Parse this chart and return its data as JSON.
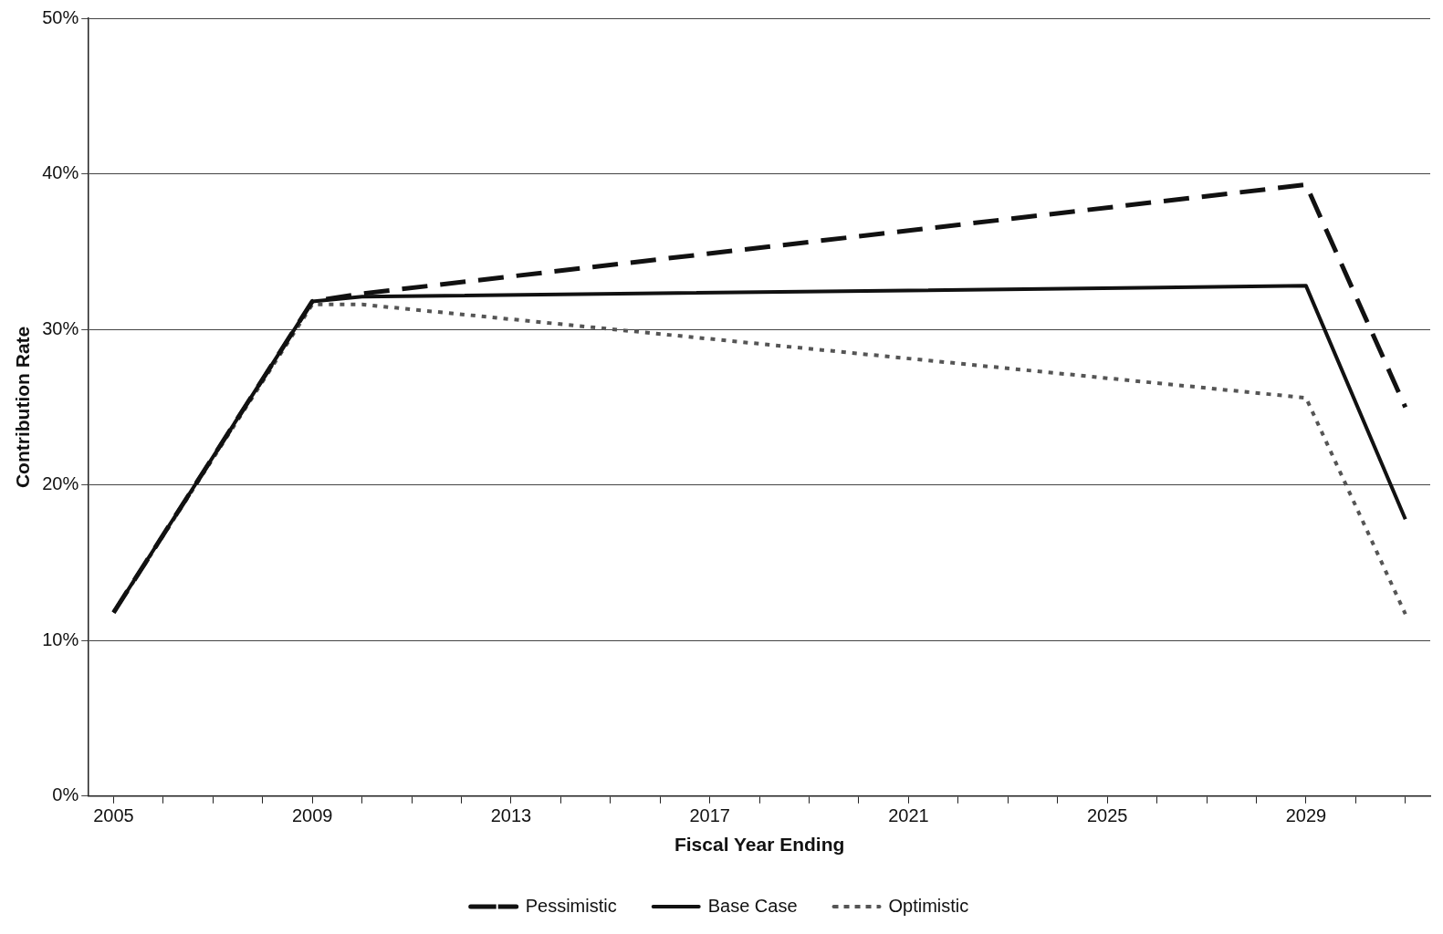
{
  "chart_data": {
    "type": "line",
    "xlabel": "Fiscal Year Ending",
    "ylabel": "Contribution Rate",
    "xlim": [
      2004.5,
      2031.5
    ],
    "xticks": [
      2005,
      {
        "value": 2006,
        "label": null
      },
      {
        "value": 2007,
        "label": null
      },
      {
        "value": 2008,
        "label": null
      },
      2009,
      {
        "value": 2010,
        "label": null
      },
      {
        "value": 2011,
        "label": null
      },
      {
        "value": 2012,
        "label": null
      },
      2013,
      {
        "value": 2014,
        "label": null
      },
      {
        "value": 2015,
        "label": null
      },
      {
        "value": 2016,
        "label": null
      },
      2017,
      {
        "value": 2018,
        "label": null
      },
      {
        "value": 2019,
        "label": null
      },
      {
        "value": 2020,
        "label": null
      },
      2021,
      {
        "value": 2022,
        "label": null
      },
      {
        "value": 2023,
        "label": null
      },
      {
        "value": 2024,
        "label": null
      },
      2025,
      {
        "value": 2026,
        "label": null
      },
      {
        "value": 2027,
        "label": null
      },
      {
        "value": 2028,
        "label": null
      },
      2029,
      {
        "value": 2030,
        "label": null
      },
      {
        "value": 2031,
        "label": null
      }
    ],
    "ylim": [
      0,
      50
    ],
    "yticks": [
      {
        "value": 0,
        "label": "0%"
      },
      {
        "value": 10,
        "label": "10%"
      },
      {
        "value": 20,
        "label": "20%"
      },
      {
        "value": 30,
        "label": "30%"
      },
      {
        "value": 40,
        "label": "40%"
      },
      {
        "value": 50,
        "label": "50%"
      }
    ],
    "grid": "y",
    "legend": "bottom",
    "marker": "none",
    "series": [
      {
        "name": "Pessimistic",
        "color": "#111111",
        "line_style": "dashed",
        "x": [
          2005,
          2009,
          2010,
          2029,
          2031
        ],
        "values": [
          11.8,
          31.8,
          32.3,
          39.3,
          25.0
        ]
      },
      {
        "name": "Base Case",
        "color": "#111111",
        "line_style": "solid",
        "x": [
          2005,
          2009,
          2010,
          2029,
          2031
        ],
        "values": [
          11.8,
          31.8,
          32.1,
          32.8,
          17.8
        ]
      },
      {
        "name": "Optimistic",
        "color": "#555555",
        "line_style": "dotted",
        "x": [
          2005,
          2009,
          2010,
          2029,
          2031
        ],
        "values": [
          11.8,
          31.6,
          31.6,
          25.6,
          11.7
        ]
      }
    ]
  }
}
